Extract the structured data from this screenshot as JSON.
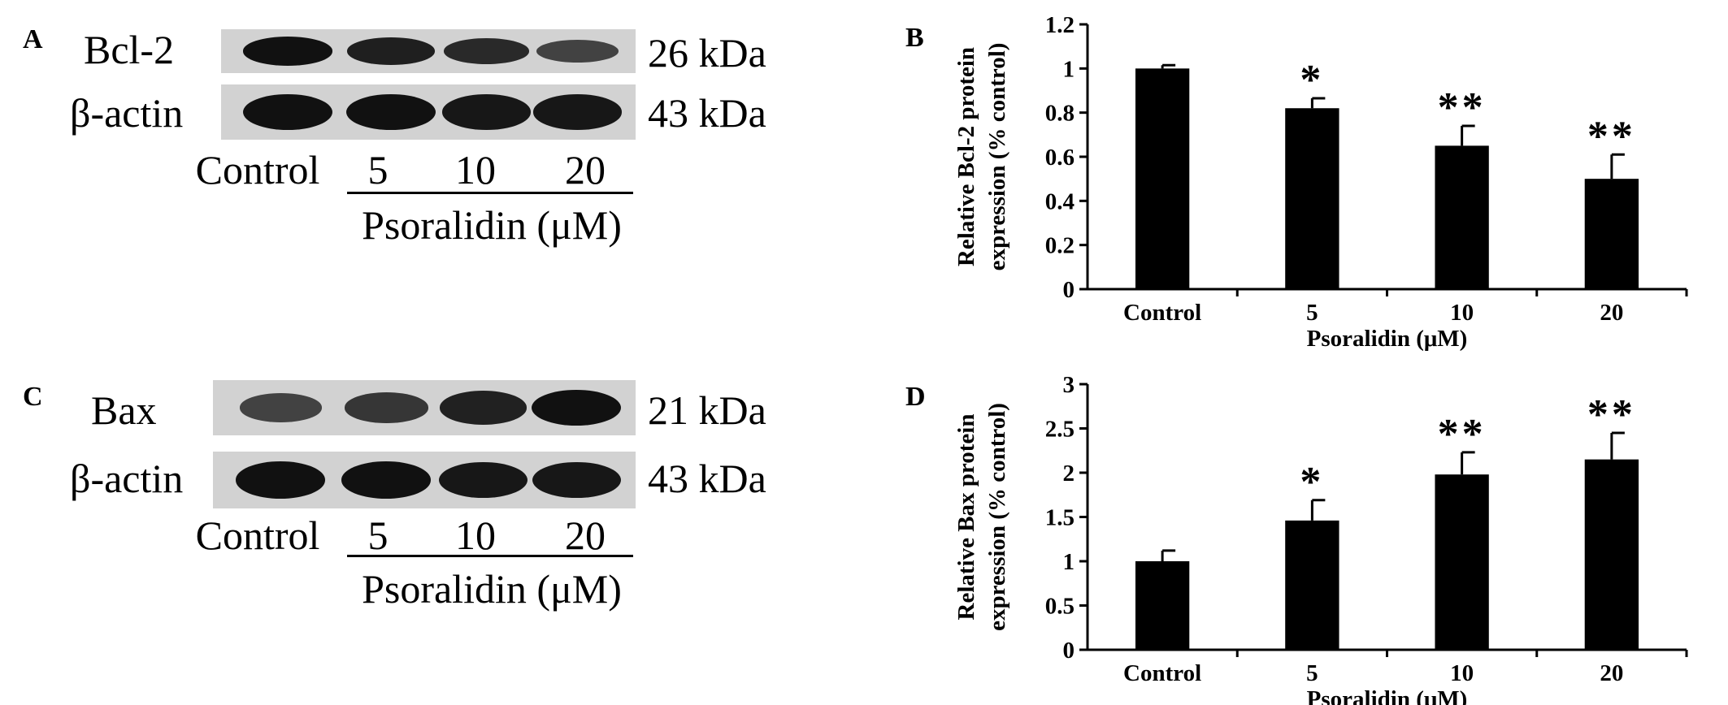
{
  "panel_a": {
    "letter": "A",
    "row1_label": "Bcl-2",
    "row1_kda": "26 kDa",
    "row1_intensity": [
      1.0,
      0.88,
      0.78,
      0.55
    ],
    "row2_label": "β-actin",
    "row2_kda": "43 kDa",
    "row2_intensity": [
      1.0,
      1.0,
      0.95,
      0.95
    ],
    "lanes": [
      "Control",
      "5",
      "10",
      "20"
    ],
    "treatment": "Psoralidin (μM)"
  },
  "panel_c": {
    "letter": "C",
    "row1_label": "Bax",
    "row1_kda": "21 kDa",
    "row1_intensity": [
      0.55,
      0.65,
      0.85,
      1.0
    ],
    "row2_label": "β-actin",
    "row2_kda": "43 kDa",
    "row2_intensity": [
      1.0,
      1.0,
      0.95,
      0.95
    ],
    "lanes": [
      "Control",
      "5",
      "10",
      "20"
    ],
    "treatment": "Psoralidin (μM)"
  },
  "panel_b_letter": "B",
  "panel_d_letter": "D",
  "chart_data": [
    {
      "type": "bar",
      "categories": [
        "Control",
        "5",
        "10",
        "20"
      ],
      "values": [
        1.0,
        0.82,
        0.65,
        0.5
      ],
      "errors": [
        0.015,
        0.045,
        0.09,
        0.11
      ],
      "significance": [
        "",
        "*",
        "**",
        "**"
      ],
      "ylabel": [
        "Relative Bcl-2 protein",
        "expression (% control)"
      ],
      "xlabel": "Psoralidin (μM)",
      "ylim": [
        0,
        1.2
      ],
      "yticks": [
        0,
        0.2,
        0.4,
        0.6,
        0.8,
        1,
        1.2
      ],
      "ytick_labels": [
        "0",
        "0.2",
        "0.4",
        "0.6",
        "0.8",
        "1",
        "1.2"
      ],
      "grid": false,
      "bar_color": "#000000"
    },
    {
      "type": "bar",
      "categories": [
        "Control",
        "5",
        "10",
        "20"
      ],
      "values": [
        1.0,
        1.46,
        1.98,
        2.15
      ],
      "errors": [
        0.12,
        0.23,
        0.25,
        0.3
      ],
      "significance": [
        "",
        "*",
        "**",
        "**"
      ],
      "ylabel": [
        "Relative Bax protein",
        "expression (% control)"
      ],
      "xlabel": "Psoralidin (μM)",
      "ylim": [
        0,
        3
      ],
      "yticks": [
        0,
        0.5,
        1,
        1.5,
        2,
        2.5,
        3
      ],
      "ytick_labels": [
        "0",
        "0.5",
        "1",
        "1.5",
        "2",
        "2.5",
        "3"
      ],
      "grid": false,
      "bar_color": "#000000"
    }
  ]
}
